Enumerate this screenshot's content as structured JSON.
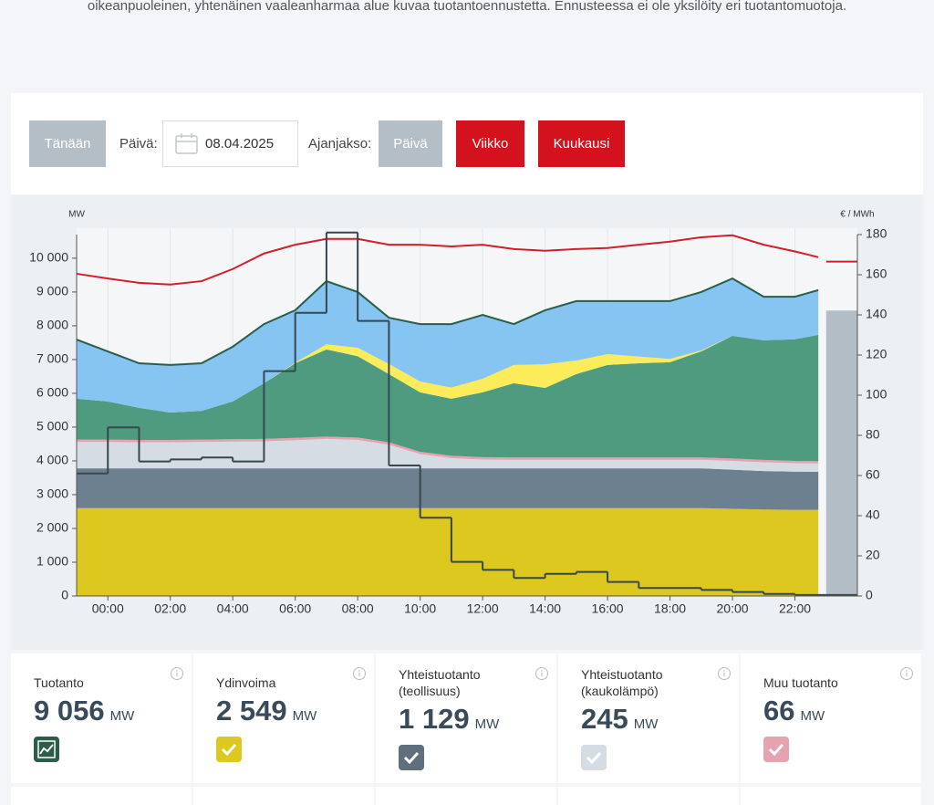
{
  "intro": "oikeanpuoleinen, yhtenäinen vaaleanharmaa alue kuvaa tuotantoennustetta. Ennusteessa ei ole yksilöity eri tuotantomuotoja.",
  "controls": {
    "today": "Tänään",
    "date_label": "Päivä:",
    "date": "08.04.2025",
    "period_label": "Ajanjakso:",
    "periods": [
      "Päivä",
      "Viikko",
      "Kuukausi"
    ]
  },
  "chart_data": {
    "type": "stacked_area",
    "y_unit": "MW",
    "y2_unit": "€ / MWh",
    "x": [
      -1,
      0,
      1,
      2,
      3,
      4,
      5,
      6,
      7,
      8,
      9,
      10,
      11,
      12,
      13,
      14,
      15,
      16,
      17,
      18,
      19,
      20,
      21,
      22,
      22.75
    ],
    "xlim": [
      -1,
      24
    ],
    "xticks": [
      {
        "value": 0,
        "label": "00:00"
      },
      {
        "value": 2,
        "label": "02:00"
      },
      {
        "value": 4,
        "label": "04:00"
      },
      {
        "value": 6,
        "label": "06:00"
      },
      {
        "value": 8,
        "label": "08:00"
      },
      {
        "value": 10,
        "label": "10:00"
      },
      {
        "value": 12,
        "label": "12:00"
      },
      {
        "value": 14,
        "label": "14:00"
      },
      {
        "value": 16,
        "label": "16:00"
      },
      {
        "value": 18,
        "label": "18:00"
      },
      {
        "value": 20,
        "label": "20:00"
      },
      {
        "value": 22,
        "label": "22:00"
      }
    ],
    "ylim": [
      0,
      10700
    ],
    "yticks": [
      0,
      {
        "value": 1000,
        "label": "1 000"
      },
      {
        "value": 2000,
        "label": "2 000"
      },
      {
        "value": 3000,
        "label": "3 000"
      },
      {
        "value": 4000,
        "label": "4 000"
      },
      {
        "value": 5000,
        "label": "5 000"
      },
      {
        "value": 6000,
        "label": "6 000"
      },
      {
        "value": 7000,
        "label": "7 000"
      },
      {
        "value": 8000,
        "label": "8 000"
      },
      {
        "value": 9000,
        "label": "9 000"
      },
      {
        "value": 10000,
        "label": "10 000"
      }
    ],
    "y2lim": [
      0,
      180
    ],
    "y2ticks": [
      0,
      20,
      40,
      60,
      80,
      100,
      120,
      140,
      160,
      180
    ],
    "grid": "x",
    "series": [
      {
        "color": "#dcc81f",
        "values": [
          2600,
          2600,
          2600,
          2600,
          2600,
          2600,
          2600,
          2600,
          2600,
          2600,
          2600,
          2600,
          2600,
          2600,
          2600,
          2600,
          2600,
          2600,
          2600,
          2600,
          2600,
          2580,
          2560,
          2550,
          2549
        ]
      },
      {
        "color": "#6d8090",
        "values": [
          1180,
          1180,
          1180,
          1180,
          1180,
          1180,
          1180,
          1180,
          1180,
          1180,
          1180,
          1180,
          1180,
          1180,
          1180,
          1180,
          1180,
          1180,
          1180,
          1180,
          1180,
          1160,
          1140,
          1130,
          1129
        ]
      },
      {
        "color": "#d6dce3",
        "values": [
          780,
          780,
          770,
          770,
          780,
          790,
          800,
          830,
          870,
          840,
          700,
          420,
          300,
          260,
          250,
          250,
          250,
          250,
          250,
          250,
          250,
          260,
          260,
          250,
          245
        ]
      },
      {
        "color": "#e6a2ae",
        "values": [
          70,
          70,
          70,
          70,
          70,
          70,
          70,
          70,
          70,
          70,
          70,
          70,
          70,
          70,
          70,
          70,
          70,
          70,
          70,
          70,
          70,
          70,
          70,
          70,
          66
        ]
      },
      {
        "color": "#4e9b80",
        "values": [
          1210,
          1130,
          950,
          810,
          850,
          1120,
          1650,
          2210,
          2580,
          2410,
          2020,
          1760,
          1690,
          1920,
          2200,
          2060,
          2470,
          2740,
          2790,
          2820,
          3140,
          3630,
          3540,
          3600,
          3741
        ]
      },
      {
        "color": "#fcec5a",
        "values": [
          0,
          0,
          0,
          0,
          0,
          0,
          0,
          20,
          150,
          250,
          300,
          320,
          330,
          400,
          540,
          700,
          400,
          320,
          200,
          100,
          30,
          0,
          0,
          0,
          0
        ]
      },
      {
        "color": "#86c4f2",
        "line_color": "#2b5d49",
        "values": [
          1750,
          1480,
          1320,
          1410,
          1410,
          1620,
          1750,
          1550,
          1870,
          1650,
          1370,
          1700,
          1880,
          1890,
          1210,
          1600,
          1760,
          1570,
          1640,
          1710,
          1730,
          1700,
          1290,
          1260,
          1326
        ]
      }
    ],
    "consumption": {
      "color": "#d21f2c",
      "values": [
        9540,
        9400,
        9270,
        9220,
        9320,
        9680,
        10140,
        10400,
        10570,
        10570,
        10400,
        10400,
        10350,
        10400,
        10270,
        10220,
        10270,
        10300,
        10400,
        10490,
        10620,
        10680,
        10400,
        10200,
        10030
      ]
    },
    "price": {
      "color": "#37474f",
      "axis": "y2",
      "x": [
        -1,
        0,
        1,
        2,
        3,
        4,
        5,
        6,
        7,
        8,
        9,
        10,
        11,
        12,
        13,
        14,
        15,
        16,
        17,
        18,
        19,
        20,
        21,
        22,
        23
      ],
      "values": [
        61,
        84,
        67,
        68,
        69,
        67,
        112,
        141,
        181,
        137,
        65,
        39,
        17,
        13,
        9,
        11,
        12,
        7,
        4,
        4,
        3,
        2,
        1,
        0.5,
        0.5
      ]
    },
    "forecast": {
      "x": [
        23,
        24
      ],
      "production": 8450,
      "production_color": "#b3bdc5",
      "consumption": 9900,
      "consumption_color": "#d21f2c"
    }
  },
  "cards": [
    {
      "title": "Tuotanto",
      "value": "9 056",
      "unit": "MW",
      "color": "#2b5d49"
    },
    {
      "title": "Ydinvoima",
      "value": "2 549",
      "unit": "MW",
      "color": "#dcc81f"
    },
    {
      "title": "Yhteistuotanto (teollisuus)",
      "value": "1 129",
      "unit": "MW",
      "color": "#5f6f7d"
    },
    {
      "title": "Yhteistuotanto (kaukolämpö)",
      "value": "245",
      "unit": "MW",
      "color": "#d6dce3"
    },
    {
      "title": "Muu tuotanto",
      "value": "66",
      "unit": "MW",
      "color": "#e6a2ae"
    }
  ]
}
